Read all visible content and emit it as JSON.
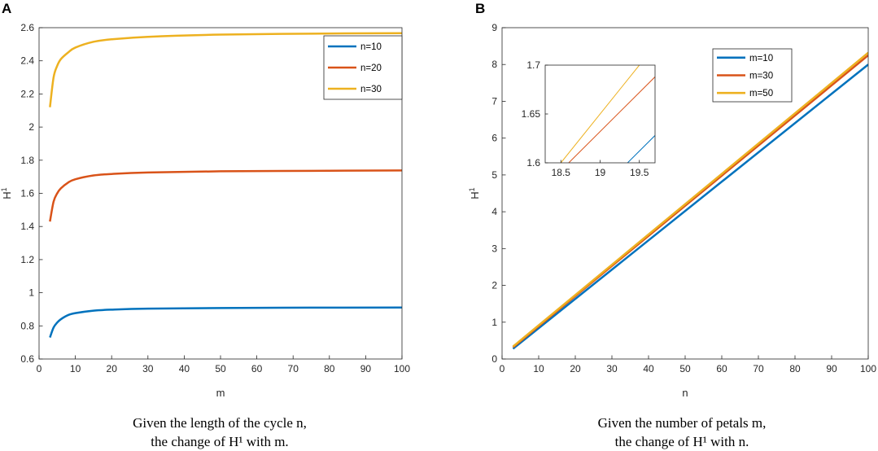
{
  "panels": [
    {
      "label": "A",
      "xlabel": "m",
      "ylabel": "H",
      "ylabel_sup": "1",
      "caption_line1": "Given the length of the cycle n,",
      "caption_line2": "the change of H¹ with m."
    },
    {
      "label": "B",
      "xlabel": "n",
      "ylabel": "H",
      "ylabel_sup": "1",
      "caption_line1": "Given the number of petals m,",
      "caption_line2": "the change of H¹ with n."
    }
  ],
  "colors": {
    "blue": "#0072BD",
    "orange": "#D95319",
    "yellow": "#EDB120",
    "axis": "#262626"
  },
  "chart_data": [
    {
      "id": "A",
      "type": "line",
      "title": "",
      "xlabel": "m",
      "ylabel": "H^1",
      "xlim": [
        0,
        100
      ],
      "ylim": [
        0.6,
        2.6
      ],
      "xticks": [
        0,
        10,
        20,
        30,
        40,
        50,
        60,
        70,
        80,
        90,
        100
      ],
      "xtick_labels": [
        "0",
        "10",
        "20",
        "30",
        "40",
        "50",
        "60",
        "70",
        "80",
        "90",
        "100"
      ],
      "yticks": [
        0.6,
        0.8,
        1.0,
        1.2,
        1.4,
        1.6,
        1.8,
        2.0,
        2.2,
        2.4,
        2.6
      ],
      "ytick_labels": [
        "0.6",
        "0.8",
        "1",
        "1.2",
        "1.4",
        "1.6",
        "1.8",
        "2",
        "2.2",
        "2.4",
        "2.6"
      ],
      "legend_position": "top-right",
      "series": [
        {
          "name": "n=10",
          "color": "#0072BD",
          "x": [
            3,
            4,
            5,
            6,
            8,
            10,
            15,
            20,
            30,
            50,
            75,
            100
          ],
          "y": [
            0.73,
            0.79,
            0.82,
            0.84,
            0.865,
            0.877,
            0.892,
            0.898,
            0.904,
            0.908,
            0.91,
            0.911
          ]
        },
        {
          "name": "n=20",
          "color": "#D95319",
          "x": [
            3,
            4,
            5,
            6,
            8,
            10,
            15,
            20,
            30,
            50,
            75,
            100
          ],
          "y": [
            1.43,
            1.55,
            1.6,
            1.63,
            1.665,
            1.685,
            1.708,
            1.717,
            1.726,
            1.733,
            1.736,
            1.738
          ]
        },
        {
          "name": "n=30",
          "color": "#EDB120",
          "x": [
            3,
            4,
            5,
            6,
            8,
            10,
            15,
            20,
            30,
            50,
            75,
            100
          ],
          "y": [
            2.12,
            2.3,
            2.37,
            2.41,
            2.45,
            2.48,
            2.515,
            2.53,
            2.545,
            2.558,
            2.564,
            2.567
          ]
        }
      ]
    },
    {
      "id": "B",
      "type": "line",
      "title": "",
      "xlabel": "n",
      "ylabel": "H^1",
      "xlim": [
        0,
        100
      ],
      "ylim": [
        0,
        9
      ],
      "xticks": [
        0,
        10,
        20,
        30,
        40,
        50,
        60,
        70,
        80,
        90,
        100
      ],
      "xtick_labels": [
        "0",
        "10",
        "20",
        "30",
        "40",
        "50",
        "60",
        "70",
        "80",
        "90",
        "100"
      ],
      "yticks": [
        0,
        1,
        2,
        3,
        4,
        5,
        6,
        7,
        8,
        9
      ],
      "ytick_labels": [
        "0",
        "1",
        "2",
        "3",
        "4",
        "5",
        "6",
        "7",
        "8",
        "9"
      ],
      "legend_position": "top-right",
      "series": [
        {
          "name": "m=10",
          "color": "#0072BD",
          "x": [
            3,
            100
          ],
          "y": [
            0.28,
            8.0
          ]
        },
        {
          "name": "m=30",
          "color": "#D95319",
          "x": [
            3,
            100
          ],
          "y": [
            0.32,
            8.25
          ]
        },
        {
          "name": "m=50",
          "color": "#EDB120",
          "x": [
            3,
            100
          ],
          "y": [
            0.34,
            8.32
          ]
        }
      ],
      "inset": {
        "type": "line",
        "position": "top-left",
        "xlim": [
          18.3,
          19.7
        ],
        "ylim": [
          1.6,
          1.7
        ],
        "xticks": [
          18.5,
          19,
          19.5
        ],
        "xtick_labels": [
          "18.5",
          "19",
          "19.5"
        ],
        "yticks": [
          1.6,
          1.65,
          1.7
        ],
        "ytick_labels": [
          "1.6",
          "1.65",
          "1.7"
        ],
        "series": [
          {
            "name": "m=10",
            "color": "#0072BD",
            "x": [
              19.35,
              19.7
            ],
            "y": [
              1.6,
              1.628
            ]
          },
          {
            "name": "m=30",
            "color": "#D95319",
            "x": [
              18.6,
              19.7
            ],
            "y": [
              1.6,
              1.688
            ]
          },
          {
            "name": "m=50",
            "color": "#EDB120",
            "x": [
              18.5,
              19.5
            ],
            "y": [
              1.6,
              1.7
            ]
          }
        ]
      }
    }
  ]
}
